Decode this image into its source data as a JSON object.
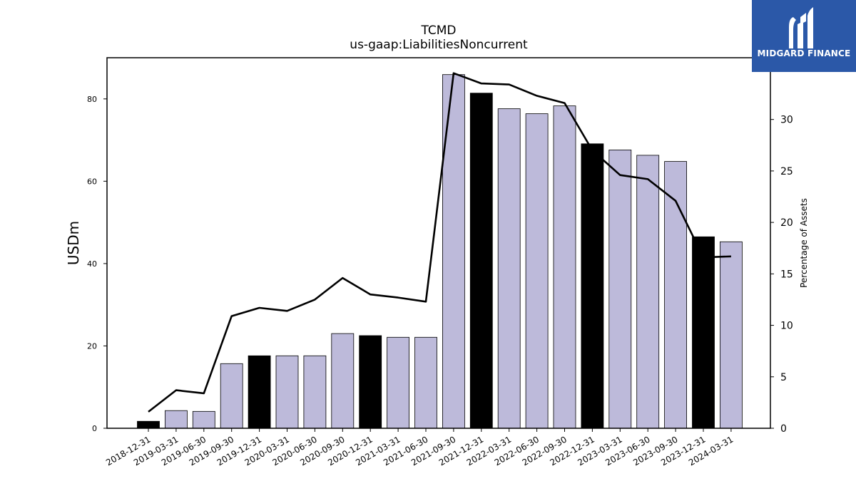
{
  "chart_data": {
    "type": "bar",
    "title": "TCMD",
    "subtitle": "us-gaap:LiabilitiesNoncurrent",
    "ylabel": "USDm",
    "y2label": "Percentage of Assets",
    "ylim": [
      0,
      90
    ],
    "y2lim": [
      0,
      36
    ],
    "yticks": [
      0,
      20,
      40,
      60,
      80
    ],
    "y2ticks": [
      0,
      5,
      10,
      15,
      20,
      25,
      30,
      35
    ],
    "categories": [
      "2018-12-31",
      "2019-03-31",
      "2019-06-30",
      "2019-09-30",
      "2019-12-31",
      "2020-03-31",
      "2020-06-30",
      "2020-09-30",
      "2020-12-31",
      "2021-03-31",
      "2021-06-30",
      "2021-09-30",
      "2021-12-31",
      "2022-03-31",
      "2022-06-30",
      "2022-09-30",
      "2022-12-31",
      "2023-03-31",
      "2023-06-30",
      "2023-09-30",
      "2023-12-31",
      "2024-03-31"
    ],
    "series": [
      {
        "kind": "bar",
        "values": [
          1.7,
          4.3,
          4.1,
          15.7,
          17.6,
          17.6,
          17.6,
          23.0,
          22.5,
          22.1,
          22.1,
          85.9,
          81.4,
          77.6,
          76.4,
          78.3,
          69.1,
          67.6,
          66.3,
          64.8,
          46.5,
          45.3
        ],
        "highlight": [
          true,
          false,
          false,
          false,
          true,
          false,
          false,
          false,
          true,
          false,
          false,
          false,
          true,
          false,
          false,
          false,
          true,
          false,
          false,
          false,
          true,
          false
        ]
      },
      {
        "kind": "line",
        "axis": "right",
        "values": [
          1.6,
          3.7,
          3.4,
          10.9,
          11.7,
          11.4,
          12.5,
          14.6,
          13.0,
          12.7,
          12.3,
          34.5,
          33.5,
          33.4,
          32.3,
          31.6,
          27.0,
          24.6,
          24.2,
          22.1,
          16.6,
          16.7
        ]
      }
    ],
    "colors": {
      "bar": "#bdbada",
      "bar_highlight": "#000000",
      "line": "#000000"
    },
    "legend": "none",
    "grid": false
  },
  "logo": {
    "text": "MIDGARD FINANCE",
    "color": "#2b58a8"
  }
}
